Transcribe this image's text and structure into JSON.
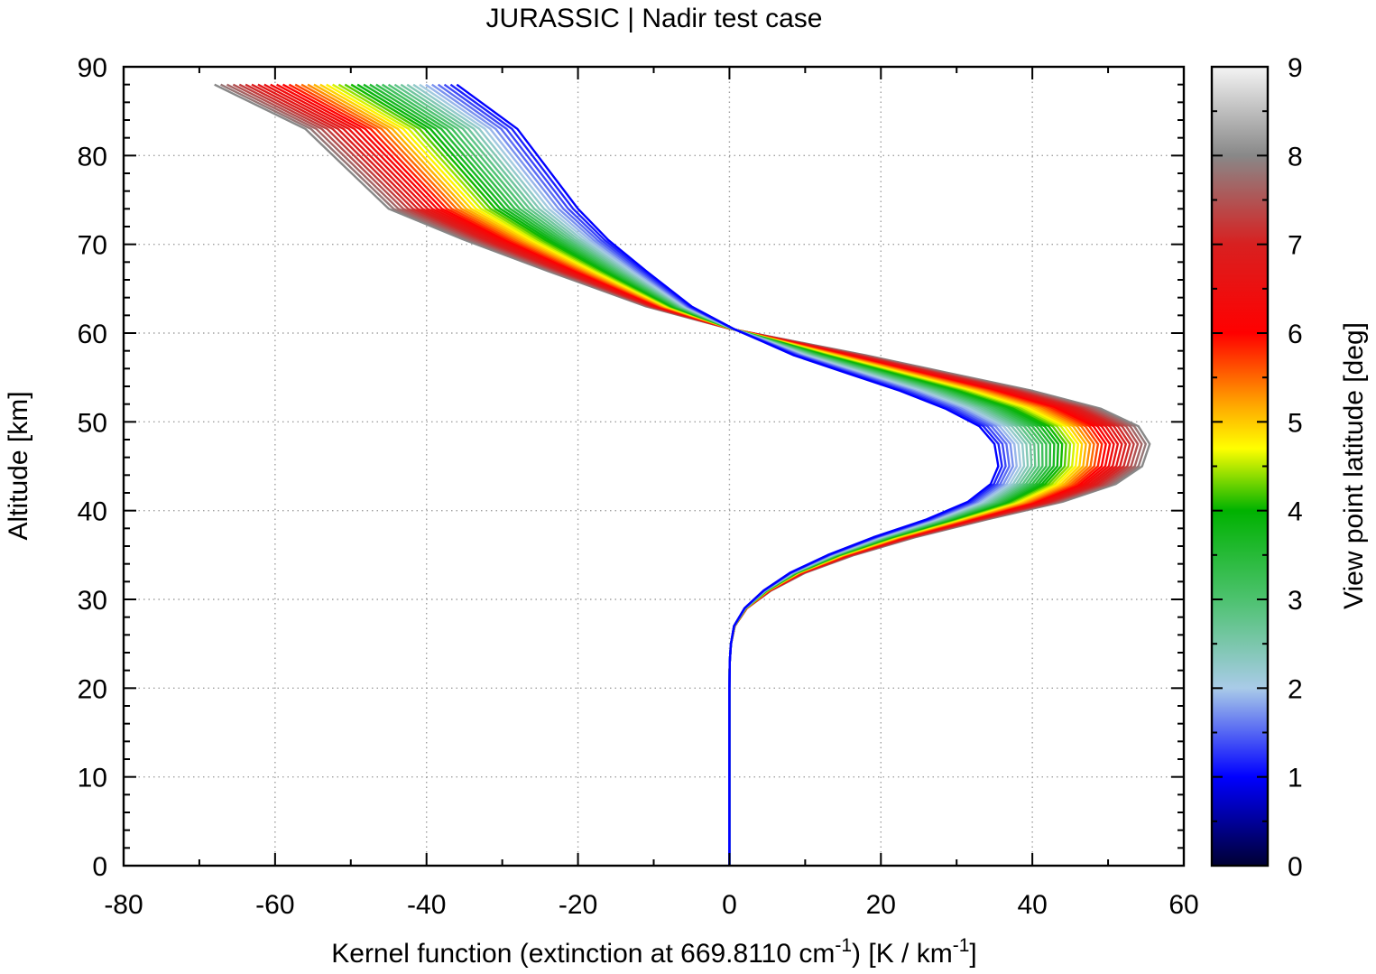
{
  "chart_data": {
    "type": "line",
    "title": "JURASSIC | Nadir test case",
    "xlabel_parts": [
      "Kernel function (extinction at 669.8110 cm",
      "-1",
      ") [K / km",
      "-1",
      "]"
    ],
    "ylabel": "Altitude [km]",
    "colorbar_label": "View point latitude [deg]",
    "xlim": [
      -80,
      60
    ],
    "ylim": [
      0,
      90
    ],
    "clim": [
      0,
      9
    ],
    "x_ticks": [
      "-80",
      "-60",
      "-40",
      "-20",
      "0",
      "20",
      "40",
      "60"
    ],
    "y_ticks": [
      "0",
      "10",
      "20",
      "30",
      "40",
      "50",
      "60",
      "70",
      "80",
      "90"
    ],
    "c_ticks": [
      "0",
      "1",
      "2",
      "3",
      "4",
      "5",
      "6",
      "7",
      "8",
      "9"
    ],
    "grid": true,
    "series_count": 40,
    "latitude_range": [
      1.0,
      8.0
    ],
    "series_low": {
      "latitude": 1.0,
      "x": [
        0,
        0,
        0,
        0.05,
        0.2,
        0.6,
        2,
        4.5,
        8,
        13,
        19,
        26,
        31.5,
        34.5,
        35.5,
        35.0,
        33,
        28.5,
        22.5,
        15.5,
        8.5,
        4.5,
        0.5,
        -5,
        -11,
        -16,
        -20,
        -28,
        -36,
        -36
      ],
      "y": [
        0,
        10,
        20,
        23,
        25,
        27,
        29,
        31,
        33,
        35,
        37,
        39,
        41,
        43,
        45,
        47.5,
        49.5,
        51.5,
        53.5,
        55.5,
        57.5,
        59,
        60.5,
        63,
        67,
        70.5,
        74,
        83,
        88,
        88
      ]
    },
    "series_high": {
      "latitude": 8.0,
      "x": [
        0,
        0,
        0,
        0.05,
        0.2,
        0.7,
        2.3,
        5.5,
        10,
        16.5,
        24.5,
        34,
        44,
        51,
        54.5,
        55.5,
        54,
        49,
        40,
        29,
        18,
        9,
        0,
        -11,
        -24,
        -35,
        -45,
        -56,
        -68,
        -68
      ],
      "y": [
        0,
        10,
        20,
        23,
        25,
        27,
        29,
        31,
        33,
        35,
        37,
        39,
        41,
        43,
        45,
        47.5,
        49.5,
        51.5,
        53.5,
        55.5,
        57.5,
        59,
        60.5,
        63,
        67,
        70.5,
        74,
        83,
        88,
        88
      ]
    },
    "colormap": [
      {
        "v": 0,
        "color": "#000033"
      },
      {
        "v": 1,
        "color": "#0000ff"
      },
      {
        "v": 2,
        "color": "#a9cbe8"
      },
      {
        "v": 3,
        "color": "#4dc26f"
      },
      {
        "v": 4,
        "color": "#00b200"
      },
      {
        "v": 4.7,
        "color": "#ffff00"
      },
      {
        "v": 5.2,
        "color": "#ffa500"
      },
      {
        "v": 6,
        "color": "#ff0000"
      },
      {
        "v": 7,
        "color": "#d82020"
      },
      {
        "v": 8,
        "color": "#888888"
      },
      {
        "v": 9,
        "color": "#f4f4f4"
      }
    ]
  }
}
